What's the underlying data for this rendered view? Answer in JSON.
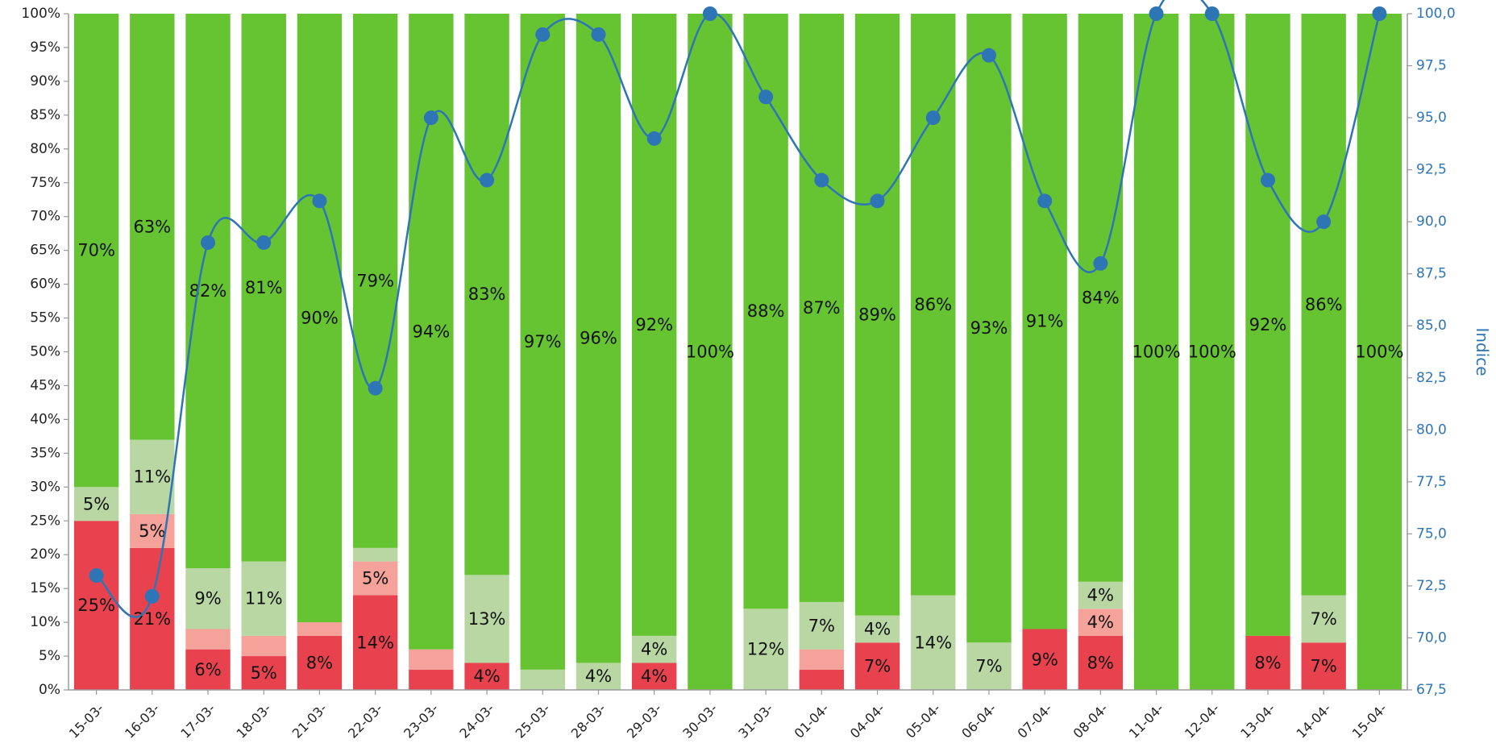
{
  "chart_data": {
    "type": "bar",
    "stacked": true,
    "percent_stacked": true,
    "categories": [
      "15-03-",
      "16-03-",
      "17-03-",
      "18-03-",
      "21-03-",
      "22-03-",
      "23-03-",
      "24-03-",
      "25-03-",
      "28-03-",
      "29-03-",
      "30-03-",
      "31-03-",
      "01-04-",
      "04-04-",
      "05-04-",
      "06-04-",
      "07-04-",
      "08-04-",
      "11-04-",
      "12-04-",
      "13-04-",
      "14-04-",
      "15-04-"
    ],
    "series": [
      {
        "color": "#E8424F",
        "values": [
          25,
          21,
          6,
          5,
          8,
          14,
          3,
          4,
          0,
          0,
          4,
          0,
          0,
          3,
          7,
          0,
          0,
          9,
          8,
          0,
          0,
          8,
          7,
          0
        ],
        "labels": [
          "25%",
          "21%",
          "6%",
          "5%",
          "8%",
          "14%",
          "",
          "4%",
          "",
          "",
          "4%",
          "",
          "",
          "",
          "7%",
          "",
          "",
          "9%",
          "8%",
          "",
          "",
          "8%",
          "7%",
          ""
        ]
      },
      {
        "color": "#F4A29A",
        "values": [
          0,
          5,
          3,
          3,
          2,
          5,
          3,
          0,
          0,
          0,
          0,
          0,
          0,
          3,
          0,
          0,
          0,
          0,
          4,
          0,
          0,
          0,
          0,
          0
        ],
        "labels": [
          "",
          "5%",
          "",
          "",
          "",
          "5%",
          "",
          "",
          "",
          "",
          "",
          "",
          "",
          "",
          "",
          "",
          "",
          "",
          "4%",
          "",
          "",
          "",
          "",
          ""
        ]
      },
      {
        "color": "#B8D7A3",
        "values": [
          5,
          11,
          9,
          11,
          0,
          2,
          0,
          13,
          3,
          4,
          4,
          0,
          12,
          7,
          4,
          14,
          7,
          0,
          4,
          0,
          0,
          0,
          7,
          0
        ],
        "labels": [
          "5%",
          "11%",
          "9%",
          "11%",
          "",
          "",
          "",
          "13%",
          "",
          "4%",
          "4%",
          "",
          "12%",
          "7%",
          "4%",
          "14%",
          "7%",
          "",
          "4%",
          "",
          "",
          "",
          "7%",
          ""
        ]
      },
      {
        "color": "#66C332",
        "values": [
          70,
          63,
          82,
          81,
          90,
          79,
          94,
          83,
          97,
          96,
          92,
          100,
          88,
          87,
          89,
          86,
          93,
          91,
          84,
          100,
          100,
          92,
          86,
          100
        ],
        "labels": [
          "70%",
          "63%",
          "82%",
          "81%",
          "90%",
          "79%",
          "94%",
          "83%",
          "97%",
          "96%",
          "92%",
          "100%",
          "88%",
          "87%",
          "89%",
          "86%",
          "93%",
          "91%",
          "84%",
          "100%",
          "100%",
          "92%",
          "86%",
          "100%"
        ]
      }
    ],
    "line": {
      "color": "#2E75B6",
      "axis": "right",
      "smooth": true,
      "values": [
        73,
        72,
        89,
        89,
        91,
        82,
        95,
        92,
        99,
        99,
        94,
        100,
        96,
        92,
        91,
        95,
        98,
        91,
        88,
        100,
        100,
        92,
        90,
        100
      ]
    },
    "y_left": {
      "min": 0,
      "max": 100,
      "step": 5,
      "format": "percent",
      "tick_labels": [
        "0%",
        "5%",
        "10%",
        "15%",
        "20%",
        "25%",
        "30%",
        "35%",
        "40%",
        "45%",
        "50%",
        "55%",
        "60%",
        "65%",
        "70%",
        "75%",
        "80%",
        "85%",
        "90%",
        "95%",
        "100%"
      ]
    },
    "y_right": {
      "min": 67.5,
      "max": 100,
      "step": 2.5,
      "label": "Indice",
      "tick_labels": [
        "67,5",
        "70,0",
        "72,5",
        "75,0",
        "77,5",
        "80,0",
        "82,5",
        "85,0",
        "87,5",
        "90,0",
        "92,5",
        "95,0",
        "97,5",
        "100,0"
      ]
    },
    "title": "",
    "xlabel": "",
    "ylabel": "",
    "grid": false,
    "legend": "none"
  }
}
